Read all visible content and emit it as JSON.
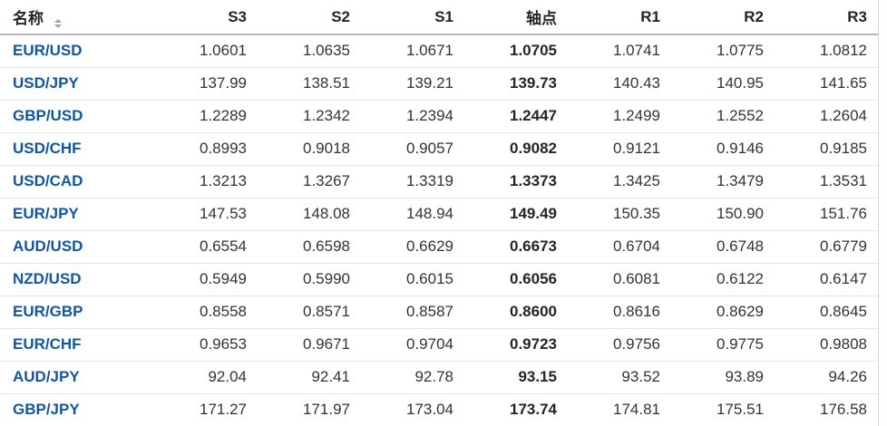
{
  "colors": {
    "link_blue": "#1256a0",
    "header_text": "#232526",
    "cell_text": "#333333",
    "pivot_text": "#232526",
    "row_border": "#e6e6e6",
    "header_border": "#b7b7b7",
    "sort_icon": "#a3a3a3",
    "gutter_line": "#d5d5d5"
  },
  "table": {
    "columns": [
      {
        "key": "name",
        "label": "名称",
        "sortable": true
      },
      {
        "key": "s3",
        "label": "S3"
      },
      {
        "key": "s2",
        "label": "S2"
      },
      {
        "key": "s1",
        "label": "S1"
      },
      {
        "key": "pivot",
        "label": "轴点",
        "emphasis": true
      },
      {
        "key": "r1",
        "label": "R1"
      },
      {
        "key": "r2",
        "label": "R2"
      },
      {
        "key": "r3",
        "label": "R3"
      }
    ],
    "rows": [
      {
        "pair": "EUR/USD",
        "values": [
          "1.0601",
          "1.0635",
          "1.0671",
          "1.0705",
          "1.0741",
          "1.0775",
          "1.0812"
        ]
      },
      {
        "pair": "USD/JPY",
        "values": [
          "137.99",
          "138.51",
          "139.21",
          "139.73",
          "140.43",
          "140.95",
          "141.65"
        ]
      },
      {
        "pair": "GBP/USD",
        "values": [
          "1.2289",
          "1.2342",
          "1.2394",
          "1.2447",
          "1.2499",
          "1.2552",
          "1.2604"
        ]
      },
      {
        "pair": "USD/CHF",
        "values": [
          "0.8993",
          "0.9018",
          "0.9057",
          "0.9082",
          "0.9121",
          "0.9146",
          "0.9185"
        ]
      },
      {
        "pair": "USD/CAD",
        "values": [
          "1.3213",
          "1.3267",
          "1.3319",
          "1.3373",
          "1.3425",
          "1.3479",
          "1.3531"
        ]
      },
      {
        "pair": "EUR/JPY",
        "values": [
          "147.53",
          "148.08",
          "148.94",
          "149.49",
          "150.35",
          "150.90",
          "151.76"
        ]
      },
      {
        "pair": "AUD/USD",
        "values": [
          "0.6554",
          "0.6598",
          "0.6629",
          "0.6673",
          "0.6704",
          "0.6748",
          "0.6779"
        ]
      },
      {
        "pair": "NZD/USD",
        "values": [
          "0.5949",
          "0.5990",
          "0.6015",
          "0.6056",
          "0.6081",
          "0.6122",
          "0.6147"
        ]
      },
      {
        "pair": "EUR/GBP",
        "values": [
          "0.8558",
          "0.8571",
          "0.8587",
          "0.8600",
          "0.8616",
          "0.8629",
          "0.8645"
        ]
      },
      {
        "pair": "EUR/CHF",
        "values": [
          "0.9653",
          "0.9671",
          "0.9704",
          "0.9723",
          "0.9756",
          "0.9775",
          "0.9808"
        ]
      },
      {
        "pair": "AUD/JPY",
        "values": [
          "92.04",
          "92.41",
          "92.78",
          "93.15",
          "93.52",
          "93.89",
          "94.26"
        ]
      },
      {
        "pair": "GBP/JPY",
        "values": [
          "171.27",
          "171.97",
          "173.04",
          "173.74",
          "174.81",
          "175.51",
          "176.58"
        ]
      }
    ]
  }
}
